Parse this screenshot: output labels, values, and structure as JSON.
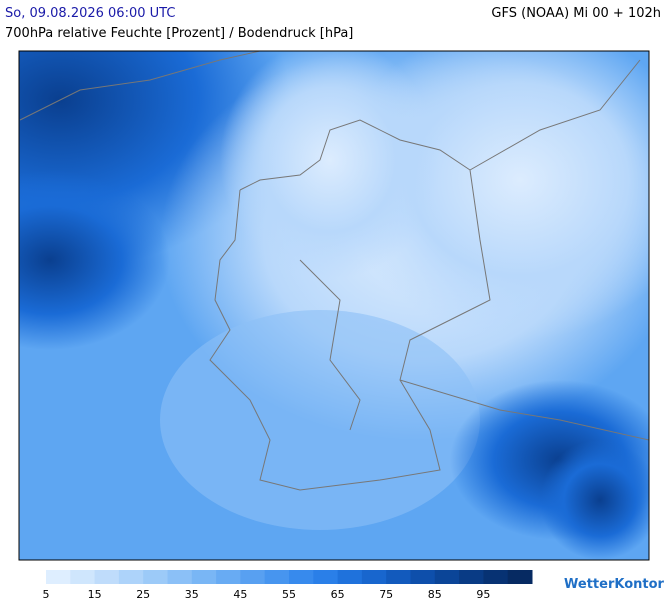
{
  "header": {
    "left": "So, 09.08.2026 06:00 UTC",
    "right": "GFS (NOAA) Mi 00 + 102h",
    "subtitle": "700hPa relative Feuchte [Prozent] / Bodendruck [hPa]"
  },
  "legend": {
    "ticks": [
      5,
      15,
      25,
      35,
      45,
      55,
      65,
      75,
      85,
      95
    ],
    "colors": [
      "#deeeff",
      "#cfe6fd",
      "#bfdcfb",
      "#add3fa",
      "#9ccaf8",
      "#8bc0f7",
      "#79b6f5",
      "#68abf3",
      "#58a0f1",
      "#4795ef",
      "#378aed",
      "#2a7fe8",
      "#1f72dc",
      "#1866ce",
      "#125abd",
      "#0e4fab",
      "#0b4598",
      "#093b85",
      "#073273",
      "#062a62"
    ]
  },
  "brand": "WetterKontor"
}
